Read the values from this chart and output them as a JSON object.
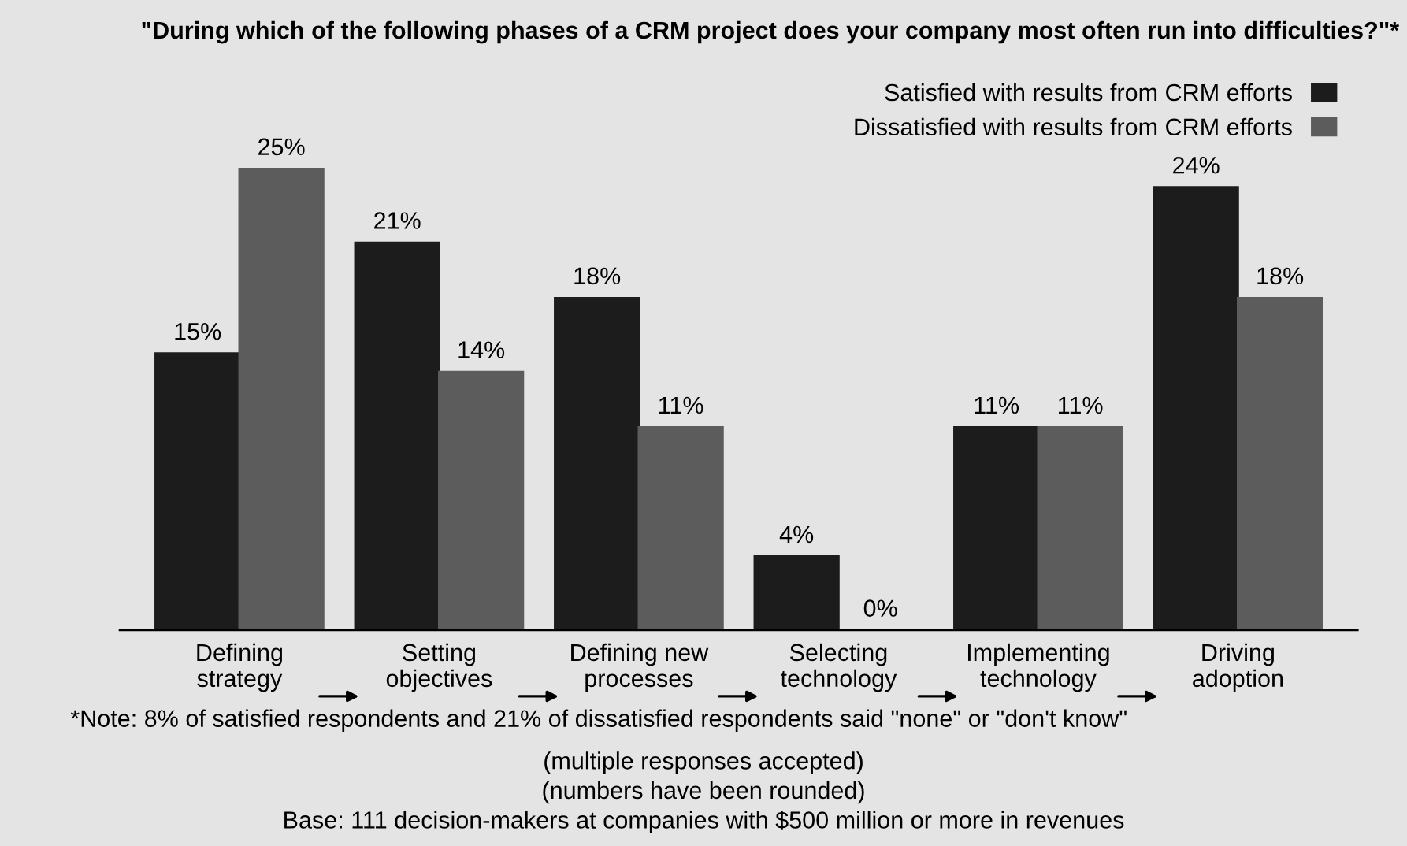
{
  "chart_data": {
    "type": "bar",
    "title": "\"During which of the following phases of a CRM project does your company most often run into difficulties?\"*",
    "categories": [
      "Defining\nstrategy",
      "Setting\nobjectives",
      "Defining new\nprocesses",
      "Selecting\ntechnology",
      "Implementing\ntechnology",
      "Driving\nadoption"
    ],
    "series": [
      {
        "name": "Satisfied with results from CRM efforts",
        "color": "#1c1c1c",
        "values": [
          15,
          21,
          18,
          4,
          11,
          24
        ],
        "value_labels": [
          "15%",
          "21%",
          "18%",
          "4%",
          "11%",
          "24%"
        ]
      },
      {
        "name": "Dissatisfied with results from CRM efforts",
        "color": "#5c5c5c",
        "values": [
          25,
          14,
          11,
          0,
          11,
          18
        ],
        "value_labels": [
          "25%",
          "14%",
          "11%",
          "0%",
          "11%",
          "18%"
        ]
      }
    ],
    "legend": "top right",
    "grid": false,
    "annotations": [
      "*Note: 8% of satisfied respondents and 21% of dissatisfied respondents said \"none\" or \"don't know\"",
      "(multiple responses accepted)",
      "(numbers have been rounded)",
      "Base: 111 decision-makers at companies with $500 million or more in revenues"
    ]
  }
}
